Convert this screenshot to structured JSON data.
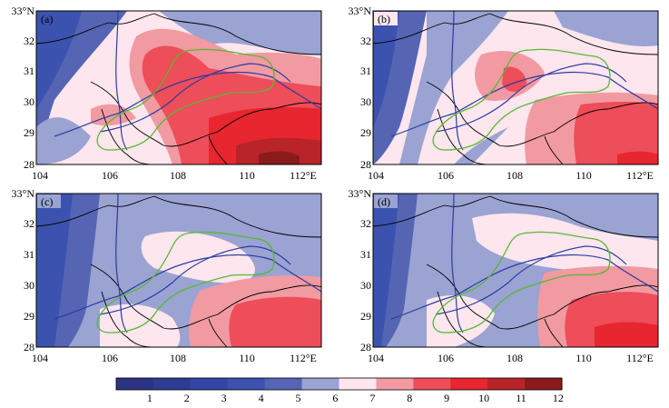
{
  "figure": {
    "panels": [
      {
        "label": "(a)",
        "lat_ticks": [
          "33°N",
          "32",
          "31",
          "30",
          "29",
          "28"
        ],
        "lon_ticks": [
          "104",
          "106",
          "108",
          "110",
          "112°E"
        ]
      },
      {
        "label": "(b)",
        "lat_ticks": [
          "33°N",
          "32",
          "31",
          "30",
          "29",
          "28"
        ],
        "lon_ticks": [
          "104",
          "106",
          "108",
          "110",
          "112°E"
        ]
      },
      {
        "label": "(c)",
        "lat_ticks": [
          "33°N",
          "32",
          "31",
          "30",
          "29",
          "28"
        ],
        "lon_ticks": [
          "104",
          "106",
          "108",
          "110",
          "112°E"
        ]
      },
      {
        "label": "(d)",
        "lat_ticks": [
          "33°N",
          "32",
          "31",
          "30",
          "29",
          "28"
        ],
        "lon_ticks": [
          "104",
          "106",
          "108",
          "110",
          "112°E"
        ]
      }
    ],
    "colorbar": {
      "labels": [
        "1",
        "2",
        "3",
        "4",
        "5",
        "6",
        "7",
        "8",
        "9",
        "10",
        "11",
        "12"
      ],
      "colors": [
        "#2e3484",
        "#2f3c94",
        "#3445a6",
        "#3b53ae",
        "#5565b3",
        "#9aa3d2",
        "#fde6ee",
        "#f19aa2",
        "#ee4d5a",
        "#e8262f",
        "#b92428",
        "#8a1a1c"
      ]
    }
  }
}
